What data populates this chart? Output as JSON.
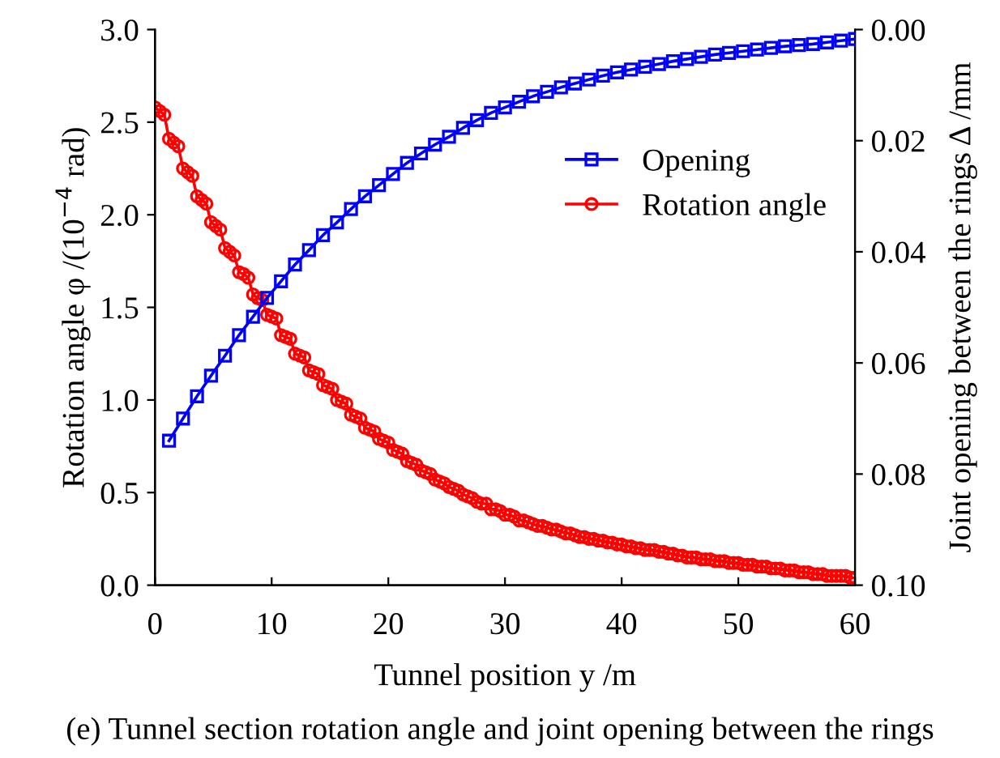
{
  "chart_data": {
    "type": "line",
    "xlabel": "Tunnel position y /m",
    "ylabel": "Rotation angle φ /(10$^{−4}$ rad)",
    "y2label": "Joint opening between the rings Δ /mm",
    "annotations": [
      "(e) Tunnel section rotation angle and joint opening between the rings"
    ],
    "xlim": [
      0,
      60
    ],
    "xticks": [
      0,
      10,
      20,
      30,
      40,
      50,
      60
    ],
    "ylim": [
      0,
      3
    ],
    "yticks": [
      {
        "value": 0,
        "label": "0.0"
      },
      {
        "value": 0.5,
        "label": "0.5"
      },
      {
        "value": 1,
        "label": "1.0"
      },
      {
        "value": 1.5,
        "label": "1.5"
      },
      {
        "value": 2,
        "label": "2.0"
      },
      {
        "value": 2.5,
        "label": "2.5"
      },
      {
        "value": 3,
        "label": "3.0"
      }
    ],
    "y2lim": [
      0.1,
      0
    ],
    "y2ticks": [
      {
        "value": 0,
        "label": "0.00"
      },
      {
        "value": 0.02,
        "label": "0.02"
      },
      {
        "value": 0.04,
        "label": "0.04"
      },
      {
        "value": 0.06,
        "label": "0.06"
      },
      {
        "value": 0.08,
        "label": "0.08"
      },
      {
        "value": 0.1,
        "label": "0.10"
      }
    ],
    "legend": "right",
    "grid": false,
    "series": [
      {
        "name": "Opening",
        "color": "#0000ff",
        "axis": "y2",
        "marker": "square",
        "x": [
          1.2,
          2.4,
          3.6,
          4.8,
          6,
          7.2,
          8.4,
          9.6,
          10.8,
          12,
          13.2,
          14.4,
          15.6,
          16.8,
          18,
          19.2,
          20.4,
          21.6,
          22.8,
          24,
          25.2,
          26.4,
          27.6,
          28.8,
          30,
          31.2,
          32.4,
          33.6,
          34.8,
          36,
          37.2,
          38.4,
          39.6,
          40.8,
          42,
          43.2,
          44.4,
          45.6,
          46.8,
          48,
          49.2,
          50.4,
          51.6,
          52.8,
          54,
          55.2,
          56.4,
          57.6,
          58.8,
          60
        ],
        "values": [
          0.074,
          0.07,
          0.066,
          0.0623,
          0.0587,
          0.055,
          0.0517,
          0.0483,
          0.0453,
          0.0423,
          0.0397,
          0.037,
          0.0347,
          0.0323,
          0.03,
          0.028,
          0.026,
          0.024,
          0.0223,
          0.0207,
          0.0193,
          0.0177,
          0.0163,
          0.015,
          0.014,
          0.013,
          0.012,
          0.0112,
          0.0104,
          0.0097,
          0.009,
          0.0083,
          0.0077,
          0.0072,
          0.0067,
          0.0062,
          0.0057,
          0.0053,
          0.0049,
          0.0045,
          0.0042,
          0.0039,
          0.0036,
          0.0033,
          0.003,
          0.0028,
          0.0026,
          0.0023,
          0.002,
          0.0017
        ]
      },
      {
        "name": "Rotation angle",
        "color": "#ff0000",
        "marker": "circle",
        "x": [
          0,
          0.4,
          0.8,
          1.2,
          1.6,
          2,
          2.4,
          2.8,
          3.2,
          3.6,
          4,
          4.4,
          4.8,
          5.2,
          5.6,
          6,
          6.4,
          6.8,
          7.2,
          7.6,
          8,
          8.4,
          8.8,
          9.2,
          9.6,
          10,
          10.4,
          10.8,
          11.2,
          11.6,
          12,
          12.4,
          12.8,
          13.2,
          13.6,
          14,
          14.4,
          14.8,
          15.2,
          15.6,
          16,
          16.4,
          16.8,
          17.2,
          17.6,
          18,
          18.4,
          18.8,
          19.2,
          19.6,
          20,
          20.4,
          20.8,
          21.2,
          21.6,
          22,
          22.4,
          22.8,
          23.2,
          23.6,
          24,
          24.4,
          24.8,
          25.2,
          25.6,
          26,
          26.4,
          26.8,
          27.2,
          27.6,
          28,
          28.4,
          28.8,
          29.2,
          29.6,
          30,
          30.4,
          30.8,
          31.2,
          31.6,
          32,
          32.4,
          32.8,
          33.2,
          33.6,
          34,
          34.4,
          34.8,
          35.2,
          35.6,
          36,
          36.4,
          36.8,
          37.2,
          37.6,
          38,
          38.4,
          38.8,
          39.2,
          39.6,
          40,
          40.4,
          40.8,
          41.2,
          41.6,
          42,
          42.4,
          42.8,
          43.2,
          43.6,
          44,
          44.4,
          44.8,
          45.2,
          45.6,
          46,
          46.4,
          46.8,
          47.2,
          47.6,
          48,
          48.4,
          48.8,
          49.2,
          49.6,
          50,
          50.4,
          50.8,
          51.2,
          51.6,
          52,
          52.4,
          52.8,
          53.2,
          53.6,
          54,
          54.4,
          54.8,
          55.2,
          55.6,
          56,
          56.4,
          56.8,
          57.2,
          57.6,
          58,
          58.4,
          58.8,
          59.2,
          59.6,
          60
        ],
        "values": [
          2.58,
          2.56,
          2.54,
          2.41,
          2.39,
          2.37,
          2.25,
          2.23,
          2.21,
          2.1,
          2.08,
          2.06,
          1.96,
          1.94,
          1.92,
          1.82,
          1.8,
          1.78,
          1.69,
          1.68,
          1.66,
          1.57,
          1.55,
          1.54,
          1.46,
          1.45,
          1.44,
          1.35,
          1.34,
          1.33,
          1.25,
          1.24,
          1.23,
          1.16,
          1.15,
          1.14,
          1.08,
          1.07,
          1.06,
          1.0,
          0.99,
          0.98,
          0.92,
          0.91,
          0.9,
          0.85,
          0.84,
          0.83,
          0.79,
          0.78,
          0.77,
          0.73,
          0.72,
          0.71,
          0.67,
          0.66,
          0.65,
          0.62,
          0.61,
          0.6,
          0.57,
          0.56,
          0.55,
          0.53,
          0.52,
          0.51,
          0.49,
          0.48,
          0.47,
          0.45,
          0.44,
          0.44,
          0.41,
          0.41,
          0.4,
          0.38,
          0.38,
          0.37,
          0.35,
          0.35,
          0.34,
          0.33,
          0.32,
          0.32,
          0.31,
          0.3,
          0.3,
          0.29,
          0.28,
          0.28,
          0.27,
          0.26,
          0.26,
          0.25,
          0.25,
          0.24,
          0.24,
          0.23,
          0.23,
          0.22,
          0.22,
          0.21,
          0.21,
          0.2,
          0.2,
          0.19,
          0.19,
          0.19,
          0.18,
          0.18,
          0.17,
          0.17,
          0.16,
          0.16,
          0.15,
          0.15,
          0.15,
          0.14,
          0.14,
          0.14,
          0.13,
          0.13,
          0.13,
          0.12,
          0.12,
          0.12,
          0.11,
          0.11,
          0.11,
          0.1,
          0.1,
          0.1,
          0.09,
          0.09,
          0.09,
          0.08,
          0.08,
          0.08,
          0.07,
          0.07,
          0.07,
          0.06,
          0.06,
          0.06,
          0.05,
          0.05,
          0.05,
          0.05,
          0.05,
          0.04,
          0.04
        ]
      }
    ]
  }
}
